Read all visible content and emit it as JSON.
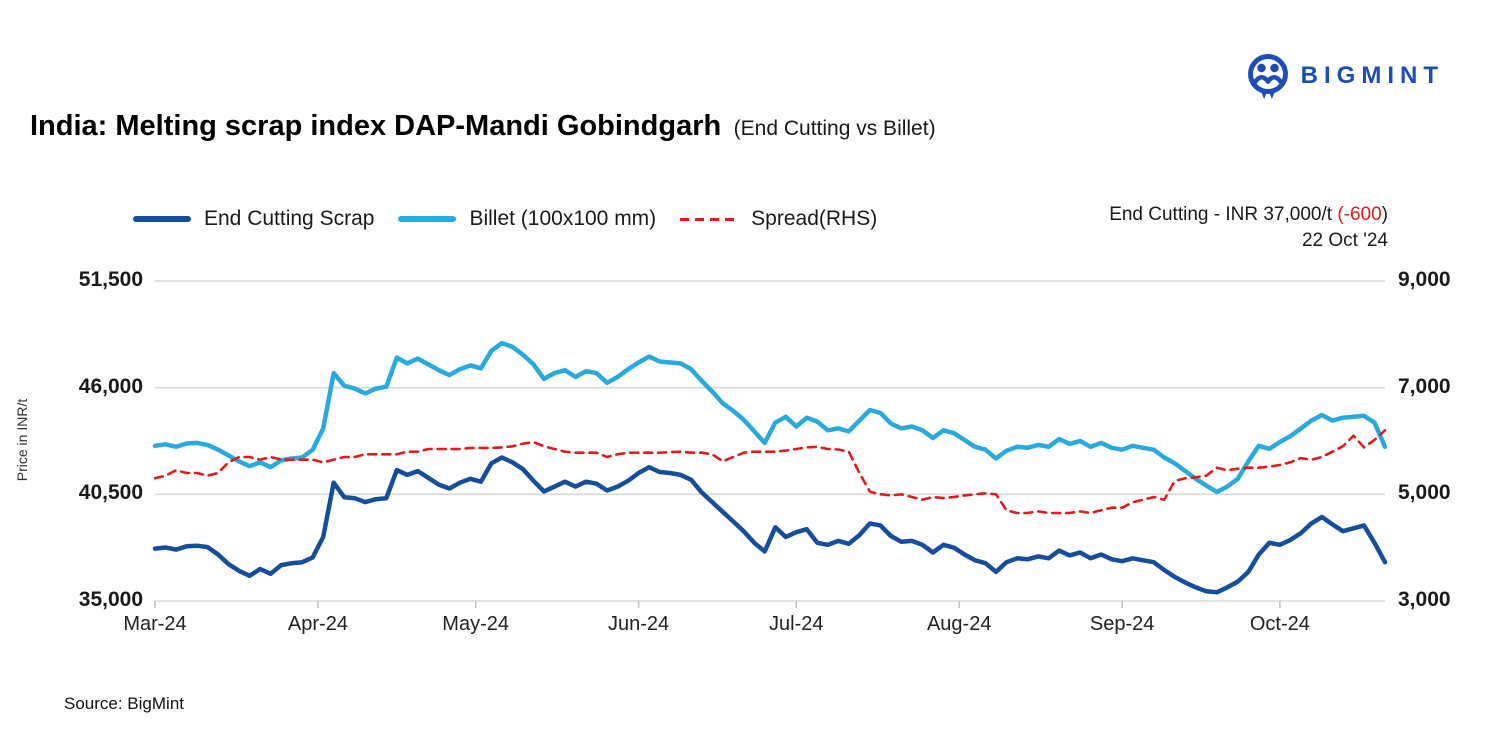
{
  "logo": {
    "brand": "BIGMINT",
    "color": "#1d4db8"
  },
  "header": {
    "title": "India: Melting scrap index DAP-Mandi Gobindgarh",
    "subtitle": "(End Cutting vs Billet)"
  },
  "legend": [
    {
      "label": "End Cutting Scrap",
      "color": "#164e9d",
      "style": "solid"
    },
    {
      "label": "Billet (100x100 mm)",
      "color": "#29aadf",
      "style": "solid"
    },
    {
      "label": "Spread(RHS)",
      "color": "#e01c1c",
      "style": "dashed"
    }
  ],
  "annotation": {
    "prefix": "End Cutting - INR 37,000/t ",
    "change": "(-600",
    "suffix": ")",
    "date": "22 Oct '24"
  },
  "source": "Source: BigMint",
  "chart_data": {
    "type": "line",
    "title": "India: Melting scrap index DAP-Mandi Gobindgarh (End Cutting vs Billet)",
    "grid": true,
    "legend_position": "top",
    "x_axis": {
      "labels": [
        "Mar-24",
        "Apr-24",
        "May-24",
        "Jun-24",
        "Jul-24",
        "Aug-24",
        "Sep-24",
        "Oct-24"
      ],
      "tick_days": [
        0,
        31,
        61,
        92,
        122,
        153,
        184,
        214
      ],
      "end_day": 234,
      "last_date": "22 Oct '24"
    },
    "y_left": {
      "label": "Price in INR/t",
      "ticks": [
        "51,500",
        "46,000",
        "40,500",
        "35,000"
      ],
      "tick_values": [
        51500,
        46000,
        40500,
        35000
      ],
      "min": 35000,
      "max": 51500
    },
    "y_right": {
      "ticks": [
        "9,000",
        "7,000",
        "5,000",
        "3,000"
      ],
      "tick_values": [
        9000,
        7000,
        5000,
        3000
      ],
      "min": 3000,
      "max": 9000
    },
    "sample_step_days": 2,
    "series": [
      {
        "id": "end-cutting",
        "name": "End Cutting Scrap",
        "axis": "left",
        "color": "#164e9d",
        "dash": null,
        "values": [
          37700,
          37760,
          37650,
          37820,
          37850,
          37780,
          37400,
          36900,
          36550,
          36300,
          36650,
          36400,
          36850,
          36950,
          37000,
          37250,
          38300,
          41100,
          40350,
          40300,
          40100,
          40250,
          40300,
          41750,
          41500,
          41700,
          41350,
          41000,
          40800,
          41100,
          41300,
          41150,
          42100,
          42400,
          42150,
          41800,
          41200,
          40650,
          40900,
          41150,
          40900,
          41150,
          41050,
          40700,
          40900,
          41200,
          41600,
          41900,
          41650,
          41600,
          41500,
          41250,
          40600,
          40100,
          39600,
          39100,
          38600,
          38000,
          37550,
          38800,
          38300,
          38550,
          38700,
          38000,
          37900,
          38100,
          37950,
          38400,
          39000,
          38900,
          38350,
          38050,
          38100,
          37900,
          37500,
          37900,
          37750,
          37400,
          37100,
          36950,
          36500,
          37000,
          37200,
          37150,
          37300,
          37200,
          37600,
          37350,
          37500,
          37200,
          37400,
          37150,
          37050,
          37200,
          37100,
          37000,
          36600,
          36250,
          35950,
          35700,
          35500,
          35450,
          35700,
          36000,
          36500,
          37400,
          38000,
          37900,
          38150,
          38500,
          39000,
          39330,
          38950,
          38600,
          38750,
          38900,
          38000,
          37000
        ]
      },
      {
        "id": "billet",
        "name": "Billet (100x100 mm)",
        "axis": "left",
        "color": "#29aadf",
        "dash": null,
        "values": [
          43000,
          43080,
          42950,
          43120,
          43150,
          43050,
          42800,
          42500,
          42200,
          41950,
          42150,
          41900,
          42250,
          42350,
          42400,
          42800,
          43900,
          46750,
          46100,
          45950,
          45700,
          45950,
          46050,
          47550,
          47250,
          47500,
          47200,
          46900,
          46650,
          46950,
          47150,
          47000,
          47900,
          48300,
          48100,
          47700,
          47200,
          46450,
          46750,
          46900,
          46550,
          46850,
          46750,
          46250,
          46550,
          46950,
          47300,
          47600,
          47350,
          47300,
          47250,
          46950,
          46350,
          45800,
          45200,
          44800,
          44350,
          43750,
          43150,
          44200,
          44500,
          44000,
          44450,
          44250,
          43800,
          43900,
          43750,
          44300,
          44850,
          44700,
          44150,
          43900,
          44000,
          43800,
          43400,
          43800,
          43650,
          43300,
          42950,
          42800,
          42350,
          42750,
          42950,
          42900,
          43050,
          42950,
          43350,
          43100,
          43250,
          42950,
          43150,
          42900,
          42800,
          43000,
          42900,
          42800,
          42400,
          42100,
          41700,
          41300,
          40950,
          40620,
          40900,
          41300,
          42200,
          43000,
          42850,
          43200,
          43500,
          43900,
          44300,
          44590,
          44300,
          44450,
          44500,
          44550,
          44200,
          42950
        ]
      },
      {
        "id": "spread",
        "name": "Spread(RHS)",
        "axis": "right",
        "color": "#e01c1c",
        "dash": [
          8,
          6
        ],
        "values": [
          5300,
          5350,
          5450,
          5400,
          5400,
          5350,
          5400,
          5600,
          5700,
          5700,
          5650,
          5700,
          5650,
          5650,
          5650,
          5650,
          5600,
          5650,
          5700,
          5700,
          5750,
          5750,
          5750,
          5750,
          5800,
          5800,
          5850,
          5850,
          5850,
          5850,
          5870,
          5870,
          5870,
          5880,
          5900,
          5950,
          5980,
          5900,
          5850,
          5800,
          5780,
          5780,
          5780,
          5700,
          5750,
          5780,
          5780,
          5780,
          5780,
          5790,
          5800,
          5780,
          5780,
          5750,
          5620,
          5700,
          5780,
          5800,
          5800,
          5800,
          5820,
          5850,
          5880,
          5890,
          5850,
          5840,
          5800,
          5400,
          5050,
          5000,
          4980,
          5000,
          4950,
          4900,
          4950,
          4930,
          4950,
          4980,
          5000,
          5020,
          5000,
          4700,
          4650,
          4650,
          4680,
          4650,
          4650,
          4650,
          4680,
          4650,
          4700,
          4750,
          4750,
          4850,
          4900,
          4950,
          4900,
          5250,
          5300,
          5320,
          5350,
          5500,
          5450,
          5480,
          5500,
          5500,
          5520,
          5550,
          5600,
          5680,
          5650,
          5700,
          5800,
          5900,
          6100,
          5880,
          6020,
          6200
        ]
      }
    ]
  }
}
